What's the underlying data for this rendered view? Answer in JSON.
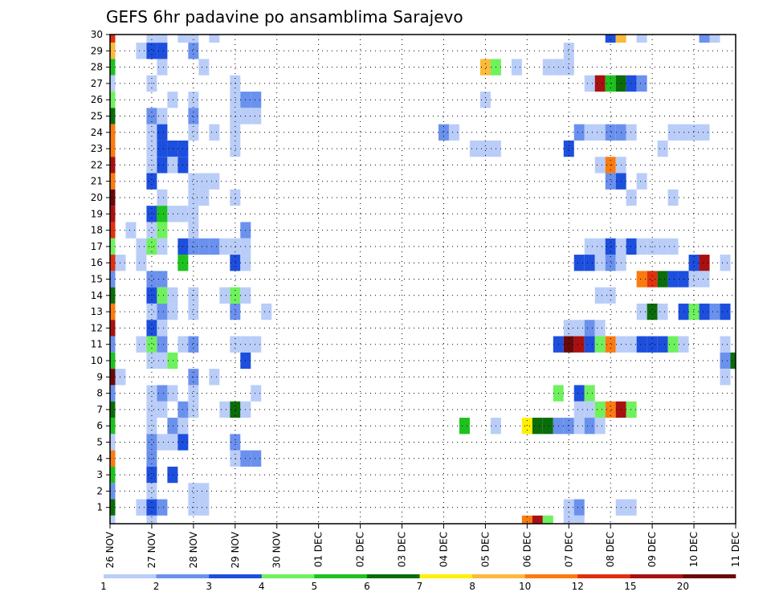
{
  "chart_data": {
    "type": "heatmap",
    "title": "GEFS 6hr padavine po ansamblima Sarajevo",
    "x_ticks": [
      "26 NOV",
      "27 NOV",
      "28 NOV",
      "29 NOV",
      "30 NOV",
      "01 DEC",
      "02 DEC",
      "03 DEC",
      "04 DEC",
      "05 DEC",
      "06 DEC",
      "07 DEC",
      "08 DEC",
      "09 DEC",
      "10 DEC",
      "11 DEC"
    ],
    "y_ticks": [
      "1",
      "2",
      "3",
      "4",
      "5",
      "6",
      "7",
      "8",
      "9",
      "10",
      "11",
      "12",
      "13",
      "14",
      "15",
      "16",
      "17",
      "18",
      "19",
      "20",
      "21",
      "22",
      "23",
      "24",
      "25",
      "26",
      "27",
      "28",
      "29",
      "30"
    ],
    "x_range": [
      0,
      60
    ],
    "y_range": [
      0,
      30
    ],
    "x_unit": "6-hour steps from 26 NOV",
    "grid": true,
    "colorbar": {
      "ticks": [
        "1",
        "2",
        "3",
        "4",
        "5",
        "6",
        "7",
        "8",
        "10",
        "12",
        "15",
        "20"
      ],
      "colors": [
        "#b9cdf8",
        "#6b91ee",
        "#1d4fde",
        "#6ff15d",
        "#1ec21e",
        "#0a6d0a",
        "#fff000",
        "#fdb93a",
        "#fa7b0f",
        "#e0310e",
        "#a91010",
        "#6b0808"
      ]
    },
    "cells": [
      [
        0,
        30,
        10
      ],
      [
        4,
        30,
        1
      ],
      [
        5,
        30,
        1
      ],
      [
        7,
        30,
        1
      ],
      [
        8,
        30,
        1
      ],
      [
        10,
        30,
        1
      ],
      [
        48,
        30,
        3
      ],
      [
        49,
        30,
        8
      ],
      [
        51,
        30,
        1
      ],
      [
        57,
        30,
        2
      ],
      [
        58,
        30,
        1
      ],
      [
        0,
        29,
        8
      ],
      [
        3,
        29,
        1
      ],
      [
        4,
        29,
        3
      ],
      [
        5,
        29,
        3
      ],
      [
        8,
        29,
        2
      ],
      [
        44,
        29,
        1
      ],
      [
        0,
        28,
        5
      ],
      [
        5,
        28,
        1
      ],
      [
        9,
        28,
        1
      ],
      [
        36,
        28,
        8
      ],
      [
        37,
        28,
        4
      ],
      [
        39,
        28,
        1
      ],
      [
        42,
        28,
        1
      ],
      [
        43,
        28,
        1
      ],
      [
        44,
        28,
        1
      ],
      [
        0,
        27,
        1
      ],
      [
        4,
        27,
        1
      ],
      [
        12,
        27,
        1
      ],
      [
        46,
        27,
        1
      ],
      [
        47,
        27,
        11
      ],
      [
        48,
        27,
        5
      ],
      [
        49,
        27,
        6
      ],
      [
        50,
        27,
        3
      ],
      [
        51,
        27,
        2
      ],
      [
        0,
        26,
        4
      ],
      [
        6,
        26,
        1
      ],
      [
        8,
        26,
        1
      ],
      [
        12,
        26,
        1
      ],
      [
        13,
        26,
        2
      ],
      [
        14,
        26,
        2
      ],
      [
        36,
        26,
        1
      ],
      [
        0,
        25,
        6
      ],
      [
        4,
        25,
        2
      ],
      [
        5,
        25,
        1
      ],
      [
        8,
        25,
        2
      ],
      [
        12,
        25,
        1
      ],
      [
        13,
        25,
        1
      ],
      [
        14,
        25,
        1
      ],
      [
        0,
        24,
        9
      ],
      [
        4,
        24,
        1
      ],
      [
        5,
        24,
        3
      ],
      [
        8,
        24,
        1
      ],
      [
        10,
        24,
        1
      ],
      [
        12,
        24,
        1
      ],
      [
        32,
        24,
        2
      ],
      [
        33,
        24,
        1
      ],
      [
        45,
        24,
        2
      ],
      [
        46,
        24,
        1
      ],
      [
        47,
        24,
        1
      ],
      [
        48,
        24,
        2
      ],
      [
        49,
        24,
        2
      ],
      [
        50,
        24,
        1
      ],
      [
        54,
        24,
        1
      ],
      [
        55,
        24,
        1
      ],
      [
        56,
        24,
        1
      ],
      [
        57,
        24,
        1
      ],
      [
        0,
        23,
        9
      ],
      [
        4,
        23,
        1
      ],
      [
        5,
        23,
        3
      ],
      [
        6,
        23,
        3
      ],
      [
        7,
        23,
        3
      ],
      [
        12,
        23,
        1
      ],
      [
        35,
        23,
        1
      ],
      [
        36,
        23,
        1
      ],
      [
        37,
        23,
        1
      ],
      [
        44,
        23,
        3
      ],
      [
        53,
        23,
        1
      ],
      [
        0,
        22,
        11
      ],
      [
        4,
        22,
        1
      ],
      [
        5,
        22,
        3
      ],
      [
        6,
        22,
        1
      ],
      [
        7,
        22,
        3
      ],
      [
        47,
        22,
        1
      ],
      [
        48,
        22,
        9
      ],
      [
        49,
        22,
        1
      ],
      [
        0,
        21,
        9
      ],
      [
        4,
        21,
        3
      ],
      [
        8,
        21,
        1
      ],
      [
        9,
        21,
        1
      ],
      [
        10,
        21,
        1
      ],
      [
        48,
        21,
        2
      ],
      [
        49,
        21,
        3
      ],
      [
        51,
        21,
        1
      ],
      [
        0,
        20,
        12
      ],
      [
        5,
        20,
        1
      ],
      [
        8,
        20,
        1
      ],
      [
        9,
        20,
        1
      ],
      [
        12,
        20,
        1
      ],
      [
        50,
        20,
        1
      ],
      [
        54,
        20,
        1
      ],
      [
        0,
        19,
        11
      ],
      [
        4,
        19,
        3
      ],
      [
        5,
        19,
        5
      ],
      [
        6,
        19,
        1
      ],
      [
        7,
        19,
        1
      ],
      [
        8,
        19,
        1
      ],
      [
        0,
        18,
        10
      ],
      [
        2,
        18,
        1
      ],
      [
        4,
        18,
        1
      ],
      [
        5,
        18,
        4
      ],
      [
        8,
        18,
        1
      ],
      [
        13,
        18,
        2
      ],
      [
        0,
        17,
        4
      ],
      [
        3,
        17,
        1
      ],
      [
        4,
        17,
        4
      ],
      [
        5,
        17,
        1
      ],
      [
        7,
        17,
        3
      ],
      [
        8,
        17,
        2
      ],
      [
        9,
        17,
        2
      ],
      [
        10,
        17,
        2
      ],
      [
        11,
        17,
        1
      ],
      [
        12,
        17,
        1
      ],
      [
        13,
        17,
        1
      ],
      [
        46,
        17,
        1
      ],
      [
        47,
        17,
        1
      ],
      [
        48,
        17,
        3
      ],
      [
        49,
        17,
        1
      ],
      [
        50,
        17,
        3
      ],
      [
        51,
        17,
        1
      ],
      [
        52,
        17,
        1
      ],
      [
        53,
        17,
        1
      ],
      [
        54,
        17,
        1
      ],
      [
        0,
        16,
        10
      ],
      [
        1,
        16,
        1
      ],
      [
        3,
        16,
        1
      ],
      [
        7,
        16,
        5
      ],
      [
        12,
        16,
        3
      ],
      [
        13,
        16,
        1
      ],
      [
        45,
        16,
        3
      ],
      [
        46,
        16,
        3
      ],
      [
        47,
        16,
        1
      ],
      [
        48,
        16,
        2
      ],
      [
        49,
        16,
        1
      ],
      [
        56,
        16,
        3
      ],
      [
        57,
        16,
        11
      ],
      [
        59,
        16,
        1
      ],
      [
        0,
        15,
        2
      ],
      [
        4,
        15,
        2
      ],
      [
        5,
        15,
        2
      ],
      [
        51,
        15,
        9
      ],
      [
        52,
        15,
        10
      ],
      [
        53,
        15,
        6
      ],
      [
        54,
        15,
        3
      ],
      [
        55,
        15,
        3
      ],
      [
        56,
        15,
        1
      ],
      [
        57,
        15,
        1
      ],
      [
        0,
        14,
        6
      ],
      [
        4,
        14,
        3
      ],
      [
        5,
        14,
        4
      ],
      [
        6,
        14,
        1
      ],
      [
        8,
        14,
        1
      ],
      [
        11,
        14,
        1
      ],
      [
        12,
        14,
        4
      ],
      [
        13,
        14,
        1
      ],
      [
        47,
        14,
        1
      ],
      [
        48,
        14,
        1
      ],
      [
        0,
        13,
        9
      ],
      [
        4,
        13,
        1
      ],
      [
        5,
        13,
        2
      ],
      [
        6,
        13,
        1
      ],
      [
        8,
        13,
        1
      ],
      [
        12,
        13,
        2
      ],
      [
        15,
        13,
        1
      ],
      [
        51,
        13,
        1
      ],
      [
        52,
        13,
        6
      ],
      [
        53,
        13,
        1
      ],
      [
        55,
        13,
        3
      ],
      [
        56,
        13,
        4
      ],
      [
        57,
        13,
        3
      ],
      [
        58,
        13,
        2
      ],
      [
        59,
        13,
        3
      ],
      [
        0,
        12,
        11
      ],
      [
        4,
        12,
        3
      ],
      [
        5,
        12,
        1
      ],
      [
        44,
        12,
        1
      ],
      [
        45,
        12,
        1
      ],
      [
        46,
        12,
        2
      ],
      [
        47,
        12,
        1
      ],
      [
        0,
        11,
        2
      ],
      [
        3,
        11,
        1
      ],
      [
        4,
        11,
        4
      ],
      [
        5,
        11,
        2
      ],
      [
        7,
        11,
        1
      ],
      [
        8,
        11,
        2
      ],
      [
        12,
        11,
        1
      ],
      [
        13,
        11,
        1
      ],
      [
        14,
        11,
        1
      ],
      [
        43,
        11,
        3
      ],
      [
        44,
        11,
        12
      ],
      [
        45,
        11,
        11
      ],
      [
        46,
        11,
        3
      ],
      [
        47,
        11,
        4
      ],
      [
        48,
        11,
        9
      ],
      [
        49,
        11,
        1
      ],
      [
        50,
        11,
        1
      ],
      [
        51,
        11,
        3
      ],
      [
        52,
        11,
        3
      ],
      [
        53,
        11,
        3
      ],
      [
        54,
        11,
        4
      ],
      [
        55,
        11,
        1
      ],
      [
        59,
        11,
        1
      ],
      [
        0,
        10,
        5
      ],
      [
        4,
        10,
        1
      ],
      [
        5,
        10,
        1
      ],
      [
        6,
        10,
        4
      ],
      [
        13,
        10,
        3
      ],
      [
        59,
        10,
        2
      ],
      [
        60,
        10,
        6
      ],
      [
        0,
        9,
        12
      ],
      [
        1,
        9,
        1
      ],
      [
        8,
        9,
        2
      ],
      [
        10,
        9,
        1
      ],
      [
        59,
        9,
        1
      ],
      [
        0,
        8,
        2
      ],
      [
        4,
        8,
        1
      ],
      [
        5,
        8,
        2
      ],
      [
        6,
        8,
        1
      ],
      [
        8,
        8,
        1
      ],
      [
        14,
        8,
        1
      ],
      [
        43,
        8,
        4
      ],
      [
        45,
        8,
        3
      ],
      [
        46,
        8,
        4
      ],
      [
        0,
        7,
        6
      ],
      [
        4,
        7,
        1
      ],
      [
        5,
        7,
        1
      ],
      [
        7,
        7,
        2
      ],
      [
        8,
        7,
        1
      ],
      [
        11,
        7,
        1
      ],
      [
        12,
        7,
        6
      ],
      [
        13,
        7,
        1
      ],
      [
        45,
        7,
        1
      ],
      [
        46,
        7,
        1
      ],
      [
        47,
        7,
        4
      ],
      [
        48,
        7,
        9
      ],
      [
        49,
        7,
        11
      ],
      [
        50,
        7,
        4
      ],
      [
        0,
        6,
        5
      ],
      [
        4,
        6,
        1
      ],
      [
        6,
        6,
        2
      ],
      [
        7,
        6,
        1
      ],
      [
        34,
        6,
        5
      ],
      [
        37,
        6,
        1
      ],
      [
        40,
        6,
        7
      ],
      [
        41,
        6,
        6
      ],
      [
        42,
        6,
        6
      ],
      [
        43,
        6,
        2
      ],
      [
        44,
        6,
        2
      ],
      [
        45,
        6,
        1
      ],
      [
        46,
        6,
        2
      ],
      [
        47,
        6,
        1
      ],
      [
        0,
        5,
        1
      ],
      [
        4,
        5,
        2
      ],
      [
        5,
        5,
        1
      ],
      [
        6,
        5,
        1
      ],
      [
        7,
        5,
        3
      ],
      [
        12,
        5,
        2
      ],
      [
        0,
        4,
        9
      ],
      [
        4,
        4,
        2
      ],
      [
        12,
        4,
        1
      ],
      [
        13,
        4,
        2
      ],
      [
        14,
        4,
        2
      ],
      [
        0,
        3,
        5
      ],
      [
        4,
        3,
        3
      ],
      [
        6,
        3,
        3
      ],
      [
        0,
        2,
        2
      ],
      [
        4,
        2,
        1
      ],
      [
        8,
        2,
        1
      ],
      [
        9,
        2,
        1
      ],
      [
        0,
        1,
        6
      ],
      [
        3,
        1,
        1
      ],
      [
        4,
        1,
        3
      ],
      [
        5,
        1,
        2
      ],
      [
        8,
        1,
        1
      ],
      [
        9,
        1,
        1
      ],
      [
        44,
        1,
        1
      ],
      [
        45,
        1,
        2
      ],
      [
        49,
        1,
        1
      ],
      [
        50,
        1,
        1
      ],
      [
        0,
        0,
        1
      ],
      [
        4,
        0,
        1
      ],
      [
        40,
        0,
        9
      ],
      [
        41,
        0,
        11
      ],
      [
        42,
        0,
        4
      ],
      [
        44,
        0,
        1
      ],
      [
        45,
        0,
        1
      ]
    ]
  }
}
